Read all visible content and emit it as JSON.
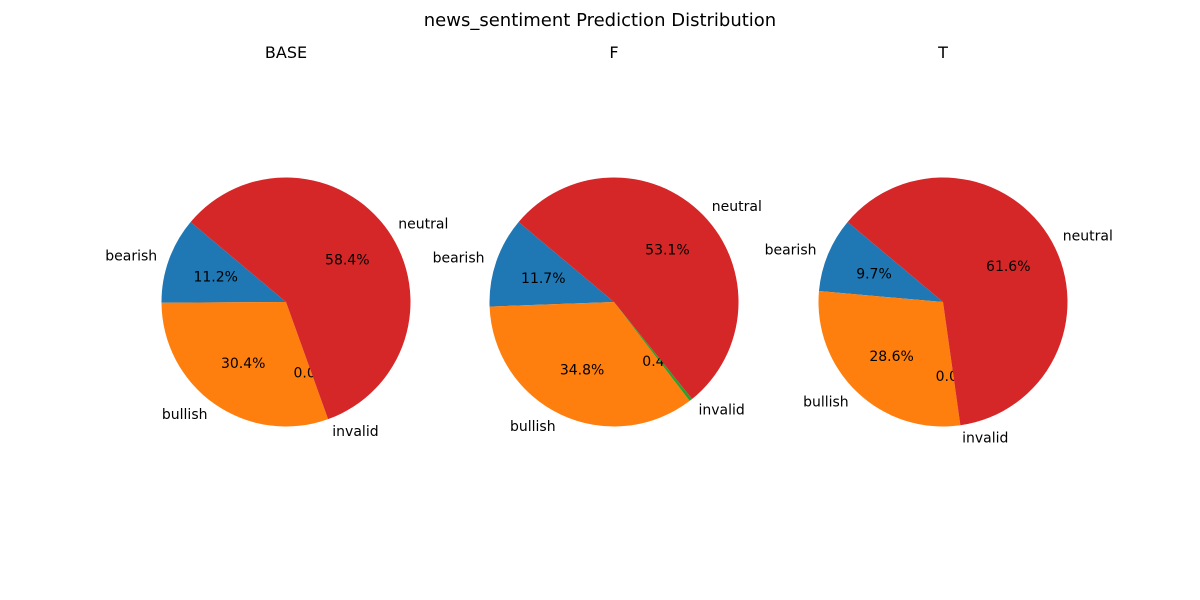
{
  "figure_title": "news_sentiment Prediction Distribution",
  "colors": {
    "bearish": "#1f77b4",
    "bullish": "#ff7f0e",
    "invalid": "#2ca02c",
    "neutral": "#d62728"
  },
  "chart_data": [
    {
      "type": "pie",
      "title": "BASE",
      "labels": [
        "bearish",
        "bullish",
        "invalid",
        "neutral"
      ],
      "values": [
        11.2,
        30.4,
        0.0,
        58.4
      ],
      "pct_labels": [
        "11.2%",
        "30.4%",
        "0.0%",
        "58.4%"
      ]
    },
    {
      "type": "pie",
      "title": "F",
      "labels": [
        "bearish",
        "bullish",
        "invalid",
        "neutral"
      ],
      "values": [
        11.7,
        34.8,
        0.4,
        53.1
      ],
      "pct_labels": [
        "11.7%",
        "34.8%",
        "0.4%",
        "53.1%"
      ]
    },
    {
      "type": "pie",
      "title": "T",
      "labels": [
        "bearish",
        "bullish",
        "invalid",
        "neutral"
      ],
      "values": [
        9.7,
        28.6,
        0.0,
        61.6
      ],
      "pct_labels": [
        "9.7%",
        "28.6%",
        "0.0%",
        "61.6%"
      ]
    }
  ]
}
